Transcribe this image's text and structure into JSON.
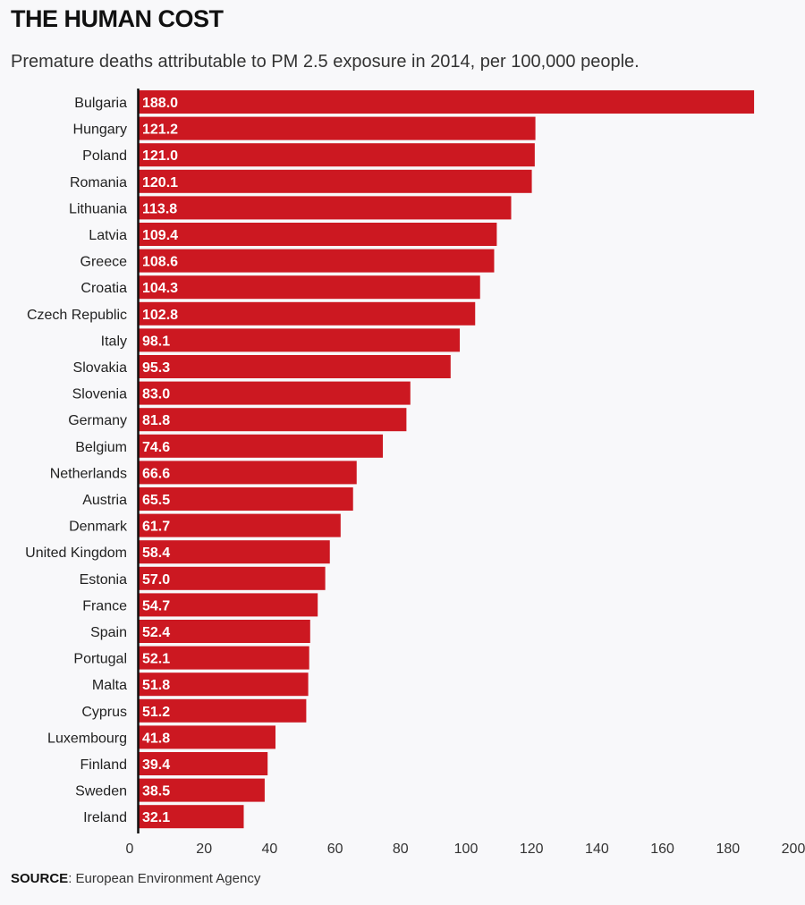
{
  "header": {
    "title": "THE HUMAN COST",
    "subtitle": "Premature deaths attributable to PM 2.5 exposure in 2014, per 100,000 people."
  },
  "footer": {
    "source_label": "SOURCE",
    "source_text": ": European Environment Agency"
  },
  "colors": {
    "bar": "#cc1821",
    "axis": "#111111",
    "background": "#f8f8fa"
  },
  "chart_data": {
    "type": "bar",
    "orientation": "horizontal",
    "title": "THE HUMAN COST",
    "subtitle": "Premature deaths attributable to PM 2.5 exposure in 2014, per 100,000 people.",
    "xlabel": "",
    "ylabel": "",
    "xlim": [
      0,
      200
    ],
    "xticks": [
      0,
      20,
      40,
      60,
      80,
      100,
      120,
      140,
      160,
      180,
      200
    ],
    "grid": false,
    "categories": [
      "Bulgaria",
      "Hungary",
      "Poland",
      "Romania",
      "Lithuania",
      "Latvia",
      "Greece",
      "Croatia",
      "Czech Republic",
      "Italy",
      "Slovakia",
      "Slovenia",
      "Germany",
      "Belgium",
      "Netherlands",
      "Austria",
      "Denmark",
      "United Kingdom",
      "Estonia",
      "France",
      "Spain",
      "Portugal",
      "Malta",
      "Cyprus",
      "Luxembourg",
      "Finland",
      "Sweden",
      "Ireland"
    ],
    "values": [
      188.0,
      121.2,
      121.0,
      120.1,
      113.8,
      109.4,
      108.6,
      104.3,
      102.8,
      98.1,
      95.3,
      83.0,
      81.8,
      74.6,
      66.6,
      65.5,
      61.7,
      58.4,
      57.0,
      54.7,
      52.4,
      52.1,
      51.8,
      51.2,
      41.8,
      39.4,
      38.5,
      32.1
    ],
    "value_labels": [
      "188.0",
      "121.2",
      "121.0",
      "120.1",
      "113.8",
      "109.4",
      "108.6",
      "104.3",
      "102.8",
      "98.1",
      "95.3",
      "83.0",
      "81.8",
      "74.6",
      "66.6",
      "65.5",
      "61.7",
      "58.4",
      "57.0",
      "54.7",
      "52.4",
      "52.1",
      "51.8",
      "51.2",
      "41.8",
      "39.4",
      "38.5",
      "32.1"
    ]
  }
}
